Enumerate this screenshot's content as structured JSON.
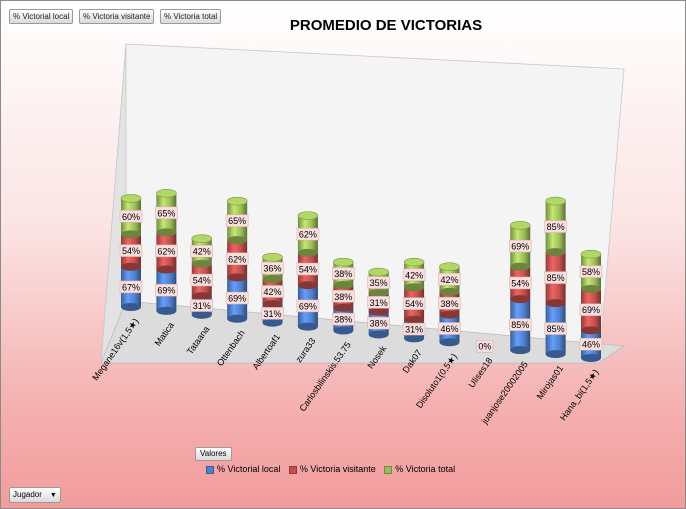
{
  "buttons": {
    "field1": "% Victorial local",
    "field2": "% Victoria visitante",
    "field3": "% Victoria total",
    "valores": "Valores",
    "jugador": "Jugador"
  },
  "colors": {
    "local": "#4f7fcb",
    "visitante": "#c0504d",
    "total": "#9bbb59"
  },
  "chart_data": {
    "type": "bar",
    "stacked": true,
    "title": "PROMEDIO DE VICTORIAS",
    "categories": [
      "Megane16v(1,5★)",
      "Matica",
      "Tataana",
      "Ottenbach",
      "Albertoaf1",
      "zura33",
      "Carlosbilinskis.53.75",
      "Nosek",
      "Dak07",
      "Disoluto1(0,5★)",
      "Ulises18",
      "juanjose20002005",
      "Mirojas01",
      "Hana_bi(1,5★)"
    ],
    "series": [
      {
        "name": "% Victorial local",
        "values": [
          0.67,
          0.69,
          0.31,
          0.69,
          0.31,
          0.69,
          0.38,
          0.38,
          0.31,
          0.46,
          0,
          0.85,
          0.85,
          0.46
        ],
        "labels": [
          "67%",
          "69%",
          "31%",
          "69%",
          "31%",
          "69%",
          "38%",
          "38%",
          "31%",
          "46%",
          "0%",
          "85%",
          "85%",
          "46%"
        ]
      },
      {
        "name": "% Victoria visitante",
        "values": [
          0.54,
          0.62,
          0.54,
          0.62,
          0.42,
          0.54,
          0.38,
          0.31,
          0.54,
          0.38,
          0,
          0.54,
          0.85,
          0.69
        ],
        "labels": [
          "54%",
          "62%",
          "54%",
          "62%",
          "42%",
          "54%",
          "38%",
          "31%",
          "54%",
          "38%",
          "",
          "54%",
          "85%",
          "69%"
        ]
      },
      {
        "name": "% Victoria total",
        "values": [
          0.6,
          0.65,
          0.42,
          0.65,
          0.36,
          0.62,
          0.38,
          0.35,
          0.42,
          0.42,
          0,
          0.69,
          0.85,
          0.58
        ],
        "labels": [
          "60%",
          "65%",
          "42%",
          "65%",
          "36%",
          "62%",
          "38%",
          "35%",
          "42%",
          "42%",
          "",
          "69%",
          "85%",
          "58%"
        ]
      }
    ],
    "legend": "bottom",
    "grid": false
  }
}
